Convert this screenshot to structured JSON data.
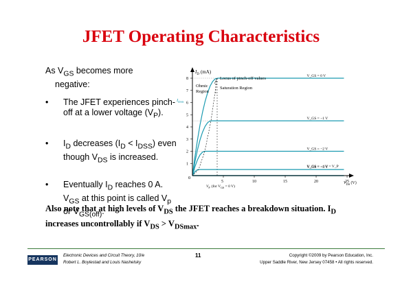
{
  "title": "JFET Operating Characteristics",
  "lead": {
    "line1": "As V",
    "line1_sub": "GS",
    "line1_rest": " becomes more",
    "line2": "negative:"
  },
  "bullets": [
    {
      "parts": [
        "The JFET experiences pinch-off at a lower voltage (V",
        "P",
        ")."
      ]
    },
    {
      "parts": [
        "I",
        "D",
        " decreases (I",
        "D",
        " < I",
        "DSS",
        ") even though V",
        "DS",
        " is increased."
      ]
    },
    {
      "parts": [
        "Eventually I",
        "D",
        " reaches 0 A. V",
        "GS",
        " at this point is called V",
        "p",
        " or V",
        "GS(off)",
        "."
      ]
    }
  ],
  "note": {
    "a": "Also note that at high levels of V",
    "a_sub": "DS",
    "b": " the JFET reaches a breakdown situation. I",
    "b_sub": "D",
    "c": " increases uncontrollably if V",
    "c_sub": "DS",
    "d": " > V",
    "d_sub": "DSmax",
    "e": "."
  },
  "figure": {
    "y_label": "I",
    "y_label_sub": "D",
    "y_unit": "(mA)",
    "idss_label": "I",
    "idss_sub": "DSS",
    "locus_label": "Locus of pinch-off values",
    "ohmic_label_1": "Ohmic",
    "ohmic_label_2": "Region",
    "saturation_label": "Saturation Region",
    "x_label": "V",
    "x_sub": "DS",
    "x_unit": "(V)",
    "vp_label": "V",
    "vp_sub": "P",
    "vp_rest": "(for V",
    "vp_sub2": "GS",
    "vp_end": " = 0 V)",
    "origin": "0",
    "curve_labels": [
      "V_GS = 0 V",
      "V_GS = −1 V",
      "V_GS = −2 V",
      "V_GS = −3 V",
      "V_GS = −4 V = V_P"
    ]
  },
  "chart_data": {
    "type": "line",
    "xlabel": "V_DS (V)",
    "ylabel": "I_D (mA)",
    "xlim": [
      0,
      25
    ],
    "ylim": [
      0,
      8
    ],
    "x_ticks": [
      5,
      10,
      15,
      20,
      25
    ],
    "y_ticks": [
      1,
      2,
      3,
      4,
      5,
      6,
      7,
      8
    ],
    "series": [
      {
        "name": "V_GS = 0 V",
        "vp": 4,
        "isat": 8
      },
      {
        "name": "V_GS = −1 V",
        "vp": 3,
        "isat": 4.5
      },
      {
        "name": "V_GS = −2 V",
        "vp": 2,
        "isat": 2
      },
      {
        "name": "V_GS = −3 V",
        "vp": 1,
        "isat": 0.5
      },
      {
        "name": "V_GS = −4 V = V_P",
        "vp": 0,
        "isat": 0
      }
    ]
  },
  "footer": {
    "logo": "PEARSON",
    "left1": "Electronic Devices and Circuit Theory, 10/e",
    "left2": "Robert L. Boylestad and Louis Nashelsky",
    "page": "11",
    "right1": "Copyright ©2009 by Pearson Education, Inc.",
    "right2": "Upper Saddle River, New Jersey 07458 • All rights reserved."
  }
}
